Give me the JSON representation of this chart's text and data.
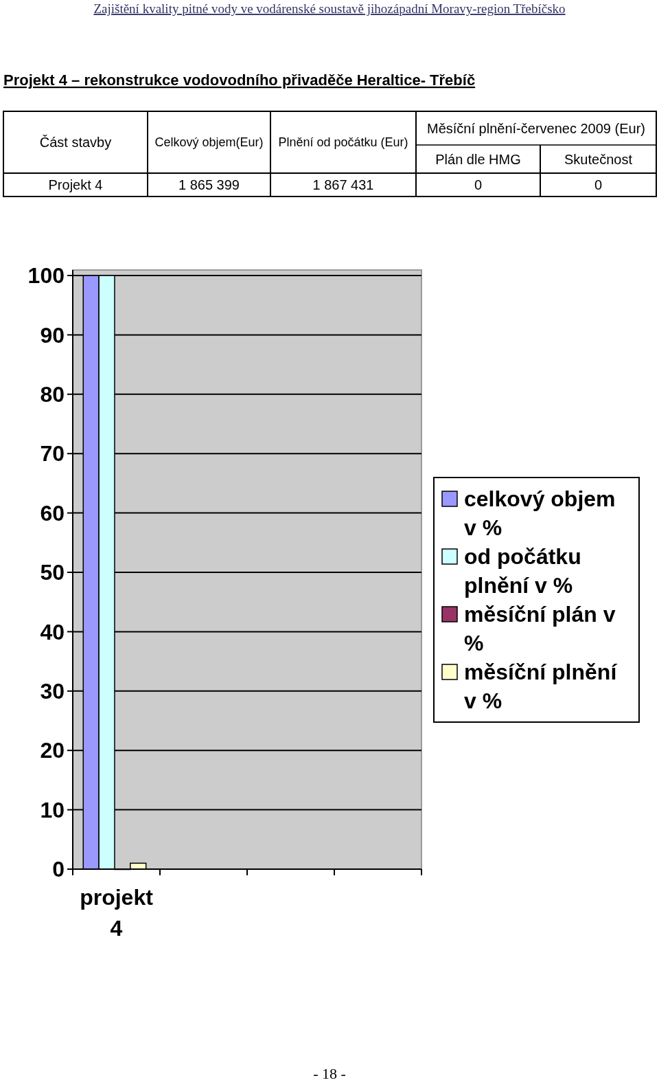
{
  "chart_data": [
    {
      "type": "other",
      "subtitle": "Zajištění kvality pitné vody ve vodárenské soustavě jihozápadní Moravy-region Třebíčsko",
      "title": "Projekt 4 – rekonstrukce vodovodního přivaděče Heraltice- Třebíč",
      "annotations": [
        "Část stavby",
        "Celkový objem(Eur)",
        "Plnění od počátku (Eur)",
        "Měsíční plnění-červenec 2009 (Eur)",
        "Plán dle HMG",
        "Skutečnost",
        "Projekt 4",
        "1 865 399",
        "1 867 431",
        "0",
        "0"
      ]
    },
    {
      "type": "bar",
      "categories": [
        "projekt 4",
        null,
        null,
        null
      ],
      "series": [
        {
          "name": "celkový objem v %",
          "color": "#9999ff",
          "values": [
            100,
            null,
            null,
            null
          ]
        },
        {
          "name": "od počátku plnění v %",
          "color": "#ccffff",
          "values": [
            100,
            null,
            null,
            null
          ]
        },
        {
          "name": "měsíční plán v %",
          "color": "#993366",
          "values": [
            0,
            null,
            null,
            null
          ]
        },
        {
          "name": "měsíční plnění v %",
          "color": "#ffffcc",
          "values": [
            1,
            null,
            null,
            null
          ]
        }
      ],
      "ylim": [
        0,
        100
      ],
      "yticks": [
        0,
        10,
        20,
        30,
        40,
        50,
        60,
        70,
        80,
        90,
        100
      ],
      "grid": "y",
      "legend": "right",
      "annotations": [
        "- 18 -"
      ]
    }
  ]
}
